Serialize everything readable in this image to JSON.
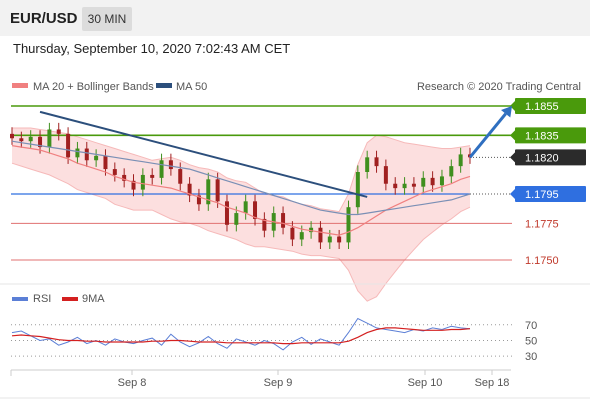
{
  "header": {
    "pair": "EUR/USD",
    "timeframe": "30 MIN"
  },
  "datetime": "Thursday, September 10, 2020 7:02:43 AM CET",
  "legend": {
    "ma20_bb": {
      "label": "MA 20 + Bollinger Bands",
      "color": "#f08080"
    },
    "ma50": {
      "label": "MA 50",
      "color": "#2c4f7c"
    },
    "credit": "Research © 2020 Trading Central"
  },
  "rsi_legend": {
    "rsi": {
      "label": "RSI",
      "color": "#5b7fd6"
    },
    "ma9": {
      "label": "9MA",
      "color": "#d42020"
    }
  },
  "chart_data": {
    "type": "line",
    "price_levels": [
      {
        "value": 1.1855,
        "label": "1.1855",
        "kind": "resistance",
        "color": "#4a9a0c"
      },
      {
        "value": 1.1835,
        "label": "1.1835",
        "kind": "resistance",
        "color": "#4a9a0c"
      },
      {
        "value": 1.182,
        "label": "1.1820",
        "kind": "last-price",
        "color": "#2b2b2b"
      },
      {
        "value": 1.1795,
        "label": "1.1795",
        "kind": "pivot",
        "color": "#2f6fe0"
      },
      {
        "value": 1.1775,
        "label": "1.1775",
        "kind": "support",
        "color": "#e07070"
      },
      {
        "value": 1.175,
        "label": "1.1750",
        "kind": "support",
        "color": "#e07070"
      }
    ],
    "x_ticks": [
      "Sep 8",
      "Sep 9",
      "Sep 10",
      "Sep 18"
    ],
    "rsi_ticks": [
      70,
      50,
      30
    ],
    "rsi_range": [
      20,
      85
    ],
    "price_close": [
      1.1833,
      1.1831,
      1.1834,
      1.1827,
      1.1839,
      1.1836,
      1.182,
      1.1826,
      1.1818,
      1.1821,
      1.1812,
      1.1808,
      1.1804,
      1.1798,
      1.1808,
      1.1806,
      1.1818,
      1.1812,
      1.1802,
      1.1794,
      1.1788,
      1.1805,
      1.179,
      1.1774,
      1.1782,
      1.179,
      1.1778,
      1.177,
      1.1782,
      1.1772,
      1.1764,
      1.1769,
      1.1772,
      1.1762,
      1.1766,
      1.1762,
      1.1786,
      1.181,
      1.182,
      1.1814,
      1.1802,
      1.1799,
      1.1802,
      1.18,
      1.1806,
      1.1801,
      1.1807,
      1.1814,
      1.1822,
      1.182
    ],
    "ma20": [
      1.1828,
      1.1827,
      1.1826,
      1.1825,
      1.1823,
      1.1821,
      1.1819,
      1.1816,
      1.1814,
      1.1812,
      1.181,
      1.1807,
      1.1805,
      1.1803,
      1.1802,
      1.1801,
      1.18,
      1.1799,
      1.1797,
      1.1795,
      1.1793,
      1.1791,
      1.1789,
      1.1786,
      1.1784,
      1.1782,
      1.1779,
      1.1777,
      1.1776,
      1.1775,
      1.1773,
      1.1771,
      1.177,
      1.1769,
      1.1768,
      1.1767,
      1.1769,
      1.1772,
      1.1776,
      1.178,
      1.1784,
      1.1787,
      1.179,
      1.1793,
      1.1796,
      1.1798,
      1.18,
      1.1802,
      1.1805,
      1.1807
    ],
    "bb_upper": [
      1.184,
      1.184,
      1.184,
      1.1839,
      1.1838,
      1.1837,
      1.1836,
      1.1834,
      1.1832,
      1.183,
      1.1828,
      1.1826,
      1.1824,
      1.1822,
      1.182,
      1.1818,
      1.1819,
      1.182,
      1.1818,
      1.1815,
      1.1813,
      1.1812,
      1.181,
      1.1806,
      1.1804,
      1.1803,
      1.1799,
      1.1795,
      1.1794,
      1.1793,
      1.179,
      1.1788,
      1.1787,
      1.1785,
      1.1784,
      1.1783,
      1.1795,
      1.1815,
      1.183,
      1.1835,
      1.1834,
      1.1832,
      1.183,
      1.1829,
      1.1828,
      1.1827,
      1.1826,
      1.1826,
      1.1827,
      1.1828
    ],
    "bb_lower": [
      1.1816,
      1.1814,
      1.1812,
      1.181,
      1.1808,
      1.1805,
      1.1802,
      1.1798,
      1.1796,
      1.1794,
      1.1792,
      1.1788,
      1.1786,
      1.1784,
      1.1784,
      1.1784,
      1.1781,
      1.1778,
      1.1776,
      1.1775,
      1.1773,
      1.177,
      1.1768,
      1.1766,
      1.1764,
      1.1761,
      1.1759,
      1.1759,
      1.1758,
      1.1757,
      1.1756,
      1.1754,
      1.1753,
      1.1753,
      1.1752,
      1.1751,
      1.1743,
      1.1729,
      1.1722,
      1.1725,
      1.1734,
      1.1742,
      1.175,
      1.1757,
      1.1764,
      1.1769,
      1.1774,
      1.1778,
      1.1783,
      1.1786
    ],
    "ma50": [
      1.1831,
      1.183,
      1.1829,
      1.1828,
      1.1827,
      1.1826,
      1.1825,
      1.1824,
      1.1823,
      1.1822,
      1.1821,
      1.182,
      1.1819,
      1.1818,
      1.1817,
      1.1816,
      1.1815,
      1.1814,
      1.1813,
      1.1812,
      1.181,
      1.1808,
      1.1806,
      1.1804,
      1.1802,
      1.18,
      1.1798,
      1.1796,
      1.1794,
      1.1792,
      1.179,
      1.1788,
      1.1786,
      1.1784,
      1.1783,
      1.1782,
      1.1781,
      1.1781,
      1.1782,
      1.1783,
      1.1784,
      1.1785,
      1.1786,
      1.1787,
      1.1788,
      1.1789,
      1.179,
      1.1791,
      1.1793,
      1.1795
    ],
    "rsi": [
      60,
      62,
      56,
      50,
      52,
      44,
      48,
      54,
      46,
      50,
      44,
      52,
      48,
      46,
      50,
      53,
      44,
      58,
      48,
      42,
      47,
      55,
      46,
      40,
      52,
      48,
      44,
      50,
      46,
      38,
      48,
      54,
      45,
      52,
      48,
      44,
      60,
      78,
      72,
      66,
      64,
      62,
      60,
      64,
      62,
      66,
      64,
      68,
      66,
      65
    ],
    "rsi_ma": [
      56,
      57,
      56,
      55,
      53,
      51,
      50,
      50,
      49,
      49,
      48,
      48,
      48,
      48,
      48,
      49,
      49,
      50,
      50,
      49,
      48,
      48,
      48,
      47,
      47,
      47,
      47,
      47,
      47,
      46,
      46,
      47,
      47,
      47,
      47,
      47,
      49,
      54,
      60,
      64,
      66,
      66,
      65,
      64,
      63,
      63,
      63,
      64,
      64,
      65
    ],
    "trendline": {
      "from": {
        "index": 3,
        "value": 1.1851
      },
      "to": {
        "index": 38,
        "value": 1.1793
      }
    },
    "forecast_arrow": {
      "from": {
        "index": 49,
        "value": 1.182
      },
      "to": {
        "value": 1.1855
      }
    }
  }
}
